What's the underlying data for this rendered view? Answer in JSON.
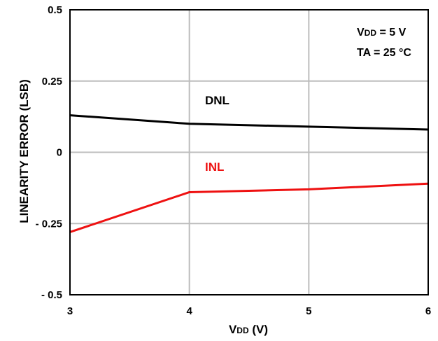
{
  "chart_data": {
    "type": "line",
    "xlabel_main": "V",
    "xlabel_sub": "DD",
    "xlabel_rest": " (V)",
    "ylabel": "LINEARITY  ERROR (LSB)",
    "xlim": [
      3,
      6
    ],
    "ylim": [
      -0.5,
      0.5
    ],
    "x_ticks": [
      3,
      4,
      5,
      6
    ],
    "x_tick_labels": [
      "3",
      "4",
      "5",
      "6"
    ],
    "y_ticks": [
      0.5,
      0.25,
      0,
      -0.25,
      -0.5
    ],
    "y_tick_labels": [
      "0.5",
      "0.25",
      "0",
      "- 0.25",
      "- 0.5"
    ],
    "grid": true,
    "annotations": {
      "vdd_main": "V",
      "vdd_sub": "DD",
      "vdd_rest": " = 5 V",
      "ta": "TA = 25 °C"
    },
    "series": [
      {
        "name": "DNL",
        "color": "#000000",
        "x": [
          3,
          4,
          5,
          6
        ],
        "y": [
          0.13,
          0.1,
          0.09,
          0.08
        ]
      },
      {
        "name": "INL",
        "color": "#ee1111",
        "x": [
          3,
          4,
          5,
          6
        ],
        "y": [
          -0.28,
          -0.14,
          -0.13,
          -0.11
        ]
      }
    ]
  }
}
